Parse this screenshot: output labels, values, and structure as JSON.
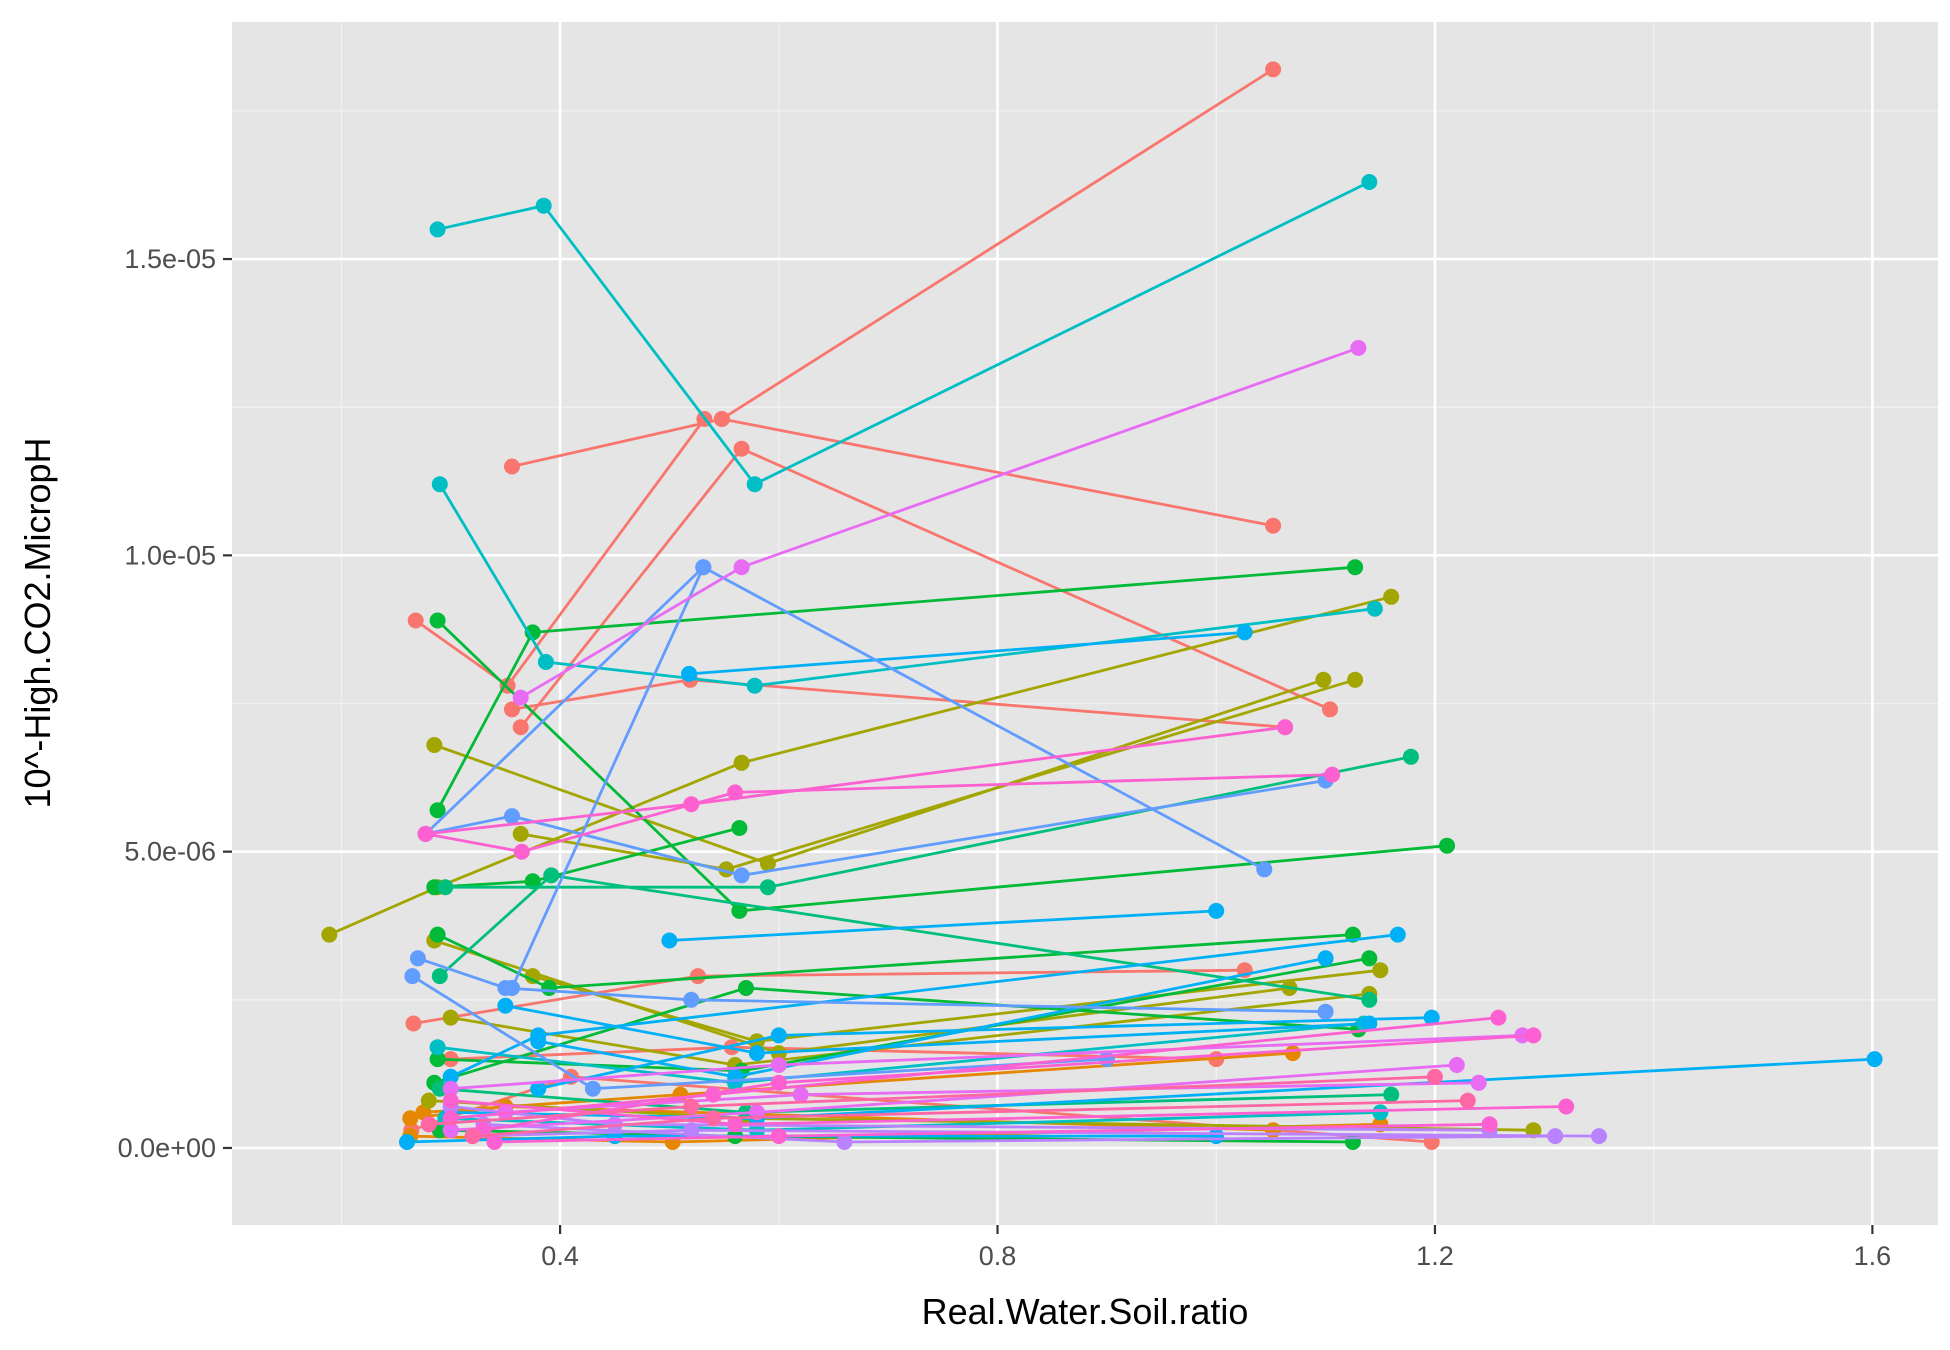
{
  "chart_data": {
    "type": "line",
    "title": "",
    "xlabel": "Real.Water.Soil.ratio",
    "ylabel": "10^-High.CO2.MicropH",
    "xlim": [
      0.1,
      1.66
    ],
    "ylim": [
      -1.3e-06,
      1.9e-05
    ],
    "x_ticks": [
      {
        "value": 0.4,
        "label": "0.4"
      },
      {
        "value": 0.8,
        "label": "0.8"
      },
      {
        "value": 1.2,
        "label": "1.2"
      },
      {
        "value": 1.6,
        "label": "1.6"
      }
    ],
    "y_ticks": [
      {
        "value": 0,
        "label": "0.0e+00"
      },
      {
        "value": 5e-06,
        "label": "5.0e-06"
      },
      {
        "value": 1e-05,
        "label": "1.0e-05"
      },
      {
        "value": 1.5e-05,
        "label": "1.5e-05"
      }
    ],
    "x_minor": [
      0.2,
      0.6,
      1.0,
      1.4
    ],
    "y_minor": [
      2.5e-06,
      7.5e-06,
      1.25e-05,
      1.75e-05
    ],
    "panel_background": "#e5e5e5",
    "grid": true,
    "legend": "none",
    "series": [
      {
        "color": "#f8766d",
        "x": [
          0.548,
          1.052
        ],
        "y": [
          1.23e-05,
          1.82e-05
        ]
      },
      {
        "color": "#f8766d",
        "x": [
          0.356,
          0.548,
          1.052
        ],
        "y": [
          1.15e-05,
          1.23e-05,
          1.05e-05
        ]
      },
      {
        "color": "#f8766d",
        "x": [
          0.364,
          0.566,
          1.104
        ],
        "y": [
          7.1e-06,
          1.18e-05,
          7.4e-06
        ]
      },
      {
        "color": "#f8766d",
        "x": [
          0.268,
          0.352,
          0.532
        ],
        "y": [
          8.9e-06,
          7.8e-06,
          1.23e-05
        ]
      },
      {
        "color": "#f8766d",
        "x": [
          0.356,
          0.519,
          1.063
        ],
        "y": [
          7.4e-06,
          7.9e-06,
          7.1e-06
        ]
      },
      {
        "color": "#f8766d",
        "x": [
          0.266,
          0.526,
          1.026
        ],
        "y": [
          2.1e-06,
          2.9e-06,
          3e-06
        ]
      },
      {
        "color": "#f8766d",
        "x": [
          0.3,
          0.557,
          1.0
        ],
        "y": [
          1.5e-06,
          1.7e-06,
          1.5e-06
        ]
      },
      {
        "color": "#f8766d",
        "x": [
          0.264,
          0.41,
          1.197
        ],
        "y": [
          3e-07,
          1.2e-06,
          1e-07
        ]
      },
      {
        "color": "#e58700",
        "x": [
          0.263,
          0.35,
          1.052
        ],
        "y": [
          5e-07,
          7e-07,
          3e-07
        ]
      },
      {
        "color": "#e58700",
        "x": [
          0.275,
          0.51,
          1.07
        ],
        "y": [
          6e-07,
          9e-07,
          1.6e-06
        ]
      },
      {
        "color": "#e58700",
        "x": [
          0.263,
          0.503,
          1.15
        ],
        "y": [
          2e-07,
          1e-07,
          4e-07
        ]
      },
      {
        "color": "#a3a500",
        "x": [
          0.189,
          0.288,
          0.566,
          1.16
        ],
        "y": [
          3.6e-06,
          4.4e-06,
          6.5e-06,
          9.3e-06
        ]
      },
      {
        "color": "#a3a500",
        "x": [
          0.285,
          0.59,
          1.098
        ],
        "y": [
          6.8e-06,
          4.8e-06,
          7.9e-06
        ]
      },
      {
        "color": "#a3a500",
        "x": [
          0.364,
          0.552,
          1.127
        ],
        "y": [
          5.3e-06,
          4.7e-06,
          7.9e-06
        ]
      },
      {
        "color": "#a3a500",
        "x": [
          0.285,
          0.6,
          1.067
        ],
        "y": [
          3.5e-06,
          1.6e-06,
          2.7e-06
        ]
      },
      {
        "color": "#a3a500",
        "x": [
          0.375,
          0.58,
          1.15
        ],
        "y": [
          2.9e-06,
          1.8e-06,
          3e-06
        ]
      },
      {
        "color": "#a3a500",
        "x": [
          0.3,
          0.56,
          1.14
        ],
        "y": [
          2.2e-06,
          1.4e-06,
          2.6e-06
        ]
      },
      {
        "color": "#a3a500",
        "x": [
          0.28,
          0.57,
          1.29
        ],
        "y": [
          8e-07,
          5e-07,
          3e-07
        ]
      },
      {
        "color": "#00ba38",
        "x": [
          0.288,
          0.375,
          1.127
        ],
        "y": [
          5.7e-06,
          8.7e-06,
          9.8e-06
        ]
      },
      {
        "color": "#00ba38",
        "x": [
          0.288,
          0.564,
          1.211
        ],
        "y": [
          8.9e-06,
          4e-06,
          5.1e-06
        ]
      },
      {
        "color": "#00ba38",
        "x": [
          0.285,
          0.375,
          0.564
        ],
        "y": [
          4.4e-06,
          4.5e-06,
          5.4e-06
        ]
      },
      {
        "color": "#00ba38",
        "x": [
          0.288,
          0.39,
          1.125
        ],
        "y": [
          3.6e-06,
          2.7e-06,
          3.6e-06
        ]
      },
      {
        "color": "#00ba38",
        "x": [
          0.288,
          0.566,
          1.14
        ],
        "y": [
          1.5e-06,
          1.3e-06,
          3.2e-06
        ]
      },
      {
        "color": "#00ba38",
        "x": [
          0.285,
          0.57,
          1.13
        ],
        "y": [
          1.1e-06,
          2.7e-06,
          2e-06
        ]
      },
      {
        "color": "#00ba38",
        "x": [
          0.29,
          0.56,
          1.125
        ],
        "y": [
          3e-07,
          2e-07,
          1e-07
        ]
      },
      {
        "color": "#00bf7d",
        "x": [
          0.295,
          0.59,
          1.178
        ],
        "y": [
          4.4e-06,
          4.4e-06,
          6.6e-06
        ]
      },
      {
        "color": "#00bf7d",
        "x": [
          0.29,
          0.392,
          1.14
        ],
        "y": [
          2.9e-06,
          4.6e-06,
          2.5e-06
        ]
      },
      {
        "color": "#00bf7d",
        "x": [
          0.29,
          0.57,
          1.16
        ],
        "y": [
          1e-06,
          6e-07,
          9e-07
        ]
      },
      {
        "color": "#00bfc4",
        "x": [
          0.288,
          0.385,
          0.578,
          1.14
        ],
        "y": [
          1.55e-05,
          1.59e-05,
          1.12e-05,
          1.63e-05
        ]
      },
      {
        "color": "#00bfc4",
        "x": [
          0.29,
          0.387,
          0.578,
          1.145
        ],
        "y": [
          1.12e-05,
          8.2e-06,
          7.8e-06,
          9.1e-06
        ]
      },
      {
        "color": "#00bfc4",
        "x": [
          0.288,
          0.56,
          1.135
        ],
        "y": [
          1.7e-06,
          1.1e-06,
          2.1e-06
        ]
      },
      {
        "color": "#00bfc4",
        "x": [
          0.295,
          0.58,
          1.15
        ],
        "y": [
          5e-07,
          3e-07,
          6e-07
        ]
      },
      {
        "color": "#00b0f6",
        "x": [
          0.518,
          1.026
        ],
        "y": [
          8e-06,
          8.7e-06
        ]
      },
      {
        "color": "#00b0f6",
        "x": [
          0.5,
          1.0
        ],
        "y": [
          3.5e-06,
          4e-06
        ]
      },
      {
        "color": "#00b0f6",
        "x": [
          0.3,
          0.38,
          1.166
        ],
        "y": [
          1.2e-06,
          1.9e-06,
          3.6e-06
        ]
      },
      {
        "color": "#00b0f6",
        "x": [
          0.38,
          0.6,
          1.197
        ],
        "y": [
          1e-06,
          1.9e-06,
          2.2e-06
        ]
      },
      {
        "color": "#00b0f6",
        "x": [
          0.35,
          0.58,
          1.14
        ],
        "y": [
          2.4e-06,
          1.6e-06,
          2.1e-06
        ]
      },
      {
        "color": "#00b0f6",
        "x": [
          0.3,
          0.58,
          1.602
        ],
        "y": [
          6e-07,
          5e-07,
          1.5e-06
        ]
      },
      {
        "color": "#00b0f6",
        "x": [
          0.38,
          0.56,
          1.1
        ],
        "y": [
          1.8e-06,
          1.2e-06,
          3.2e-06
        ]
      },
      {
        "color": "#00b0f6",
        "x": [
          0.26,
          0.45,
          1.0
        ],
        "y": [
          1e-07,
          2e-07,
          2e-07
        ]
      },
      {
        "color": "#619cff",
        "x": [
          0.277,
          0.531,
          1.044
        ],
        "y": [
          5.3e-06,
          9.8e-06,
          4.7e-06
        ]
      },
      {
        "color": "#619cff",
        "x": [
          0.277,
          0.356,
          0.566,
          1.1
        ],
        "y": [
          5.3e-06,
          5.6e-06,
          4.6e-06,
          6.2e-06
        ]
      },
      {
        "color": "#619cff",
        "x": [
          0.356,
          0.531
        ],
        "y": [
          2.7e-06,
          9.8e-06
        ]
      },
      {
        "color": "#619cff",
        "x": [
          0.27,
          0.35,
          0.52,
          1.1
        ],
        "y": [
          3.2e-06,
          2.7e-06,
          2.5e-06,
          2.3e-06
        ]
      },
      {
        "color": "#619cff",
        "x": [
          0.265,
          0.43,
          0.9
        ],
        "y": [
          2.9e-06,
          1e-06,
          1.5e-06
        ]
      },
      {
        "color": "#b983ff",
        "x": [
          0.3,
          0.45,
          1.25
        ],
        "y": [
          7e-07,
          4e-07,
          3e-07
        ]
      },
      {
        "color": "#b983ff",
        "x": [
          0.32,
          0.52,
          1.35
        ],
        "y": [
          2e-07,
          3e-07,
          2e-07
        ]
      },
      {
        "color": "#b983ff",
        "x": [
          0.33,
          0.66,
          1.31
        ],
        "y": [
          4e-07,
          1e-07,
          2e-07
        ]
      },
      {
        "color": "#e76bf3",
        "x": [
          0.364,
          0.566,
          1.13
        ],
        "y": [
          7.6e-06,
          9.8e-06,
          1.35e-05
        ]
      },
      {
        "color": "#e76bf3",
        "x": [
          0.3,
          0.6,
          1.28
        ],
        "y": [
          1e-06,
          1.4e-06,
          1.9e-06
        ]
      },
      {
        "color": "#e76bf3",
        "x": [
          0.35,
          0.62,
          1.24
        ],
        "y": [
          6e-07,
          9e-07,
          1.1e-06
        ]
      },
      {
        "color": "#e76bf3",
        "x": [
          0.3,
          0.58,
          1.22
        ],
        "y": [
          3e-07,
          6e-07,
          1.4e-06
        ]
      },
      {
        "color": "#fd61d1",
        "x": [
          0.277,
          0.365,
          0.56,
          1.106
        ],
        "y": [
          5.3e-06,
          5e-06,
          6e-06,
          6.3e-06
        ]
      },
      {
        "color": "#fd61d1",
        "x": [
          0.277,
          0.52,
          1.063
        ],
        "y": [
          5.3e-06,
          5.8e-06,
          7.1e-06
        ]
      },
      {
        "color": "#fd61d1",
        "x": [
          0.3,
          0.54,
          1.258
        ],
        "y": [
          5e-07,
          9e-07,
          2.2e-06
        ]
      },
      {
        "color": "#fd61d1",
        "x": [
          0.33,
          0.6,
          1.29
        ],
        "y": [
          3e-07,
          1.1e-06,
          1.9e-06
        ]
      },
      {
        "color": "#fd61d1",
        "x": [
          0.3,
          0.56,
          1.32
        ],
        "y": [
          8e-07,
          4e-07,
          7e-07
        ]
      },
      {
        "color": "#fd61d1",
        "x": [
          0.34,
          0.6,
          1.25
        ],
        "y": [
          1e-07,
          2e-07,
          4e-07
        ]
      },
      {
        "color": "#ff67a4",
        "x": [
          0.28,
          0.52,
          1.2
        ],
        "y": [
          4e-07,
          7e-07,
          1.2e-06
        ]
      },
      {
        "color": "#ff67a4",
        "x": [
          0.32,
          0.54,
          1.23
        ],
        "y": [
          2e-07,
          5e-07,
          8e-07
        ]
      }
    ]
  }
}
